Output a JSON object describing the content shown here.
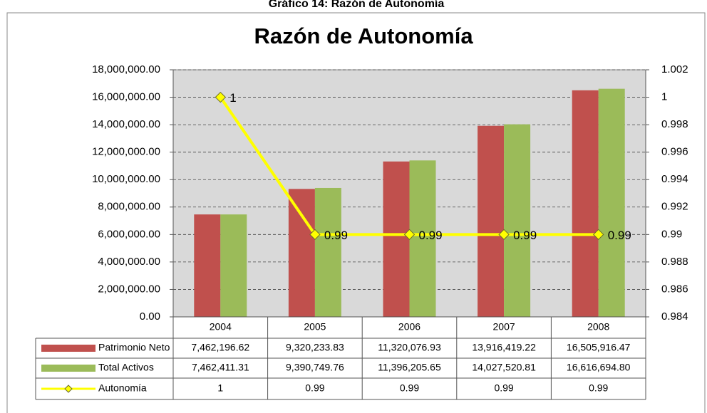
{
  "chart_data": {
    "type": "bar",
    "caption": "Gráfico 14: Razón de Autonomía",
    "title": "Razón de Autonomía",
    "categories": [
      "2004",
      "2005",
      "2006",
      "2007",
      "2008"
    ],
    "series": [
      {
        "name": "Patrimonio Neto",
        "color": "#c0504d",
        "values": [
          7462196.62,
          9320233.83,
          11320076.93,
          13916419.22,
          16505916.47
        ],
        "value_labels": [
          "7,462,196.62",
          "9,320,233.83",
          "11,320,076.93",
          "13,916,419.22",
          "16,505,916.47"
        ]
      },
      {
        "name": "Total Activos",
        "color": "#9bbb59",
        "values": [
          7462411.31,
          9390749.76,
          11396205.65,
          14027520.81,
          16616694.8
        ],
        "value_labels": [
          "7,462,411.31",
          "9,390,749.76",
          "11,396,205.65",
          "14,027,520.81",
          "16,616,694.80"
        ]
      },
      {
        "name": "Autonomía",
        "type": "line",
        "axis": "y2",
        "color": "#ffff00",
        "values": [
          1,
          0.99,
          0.99,
          0.99,
          0.99
        ]
      }
    ],
    "ylim": [
      0,
      18000000
    ],
    "yticks": [
      {
        "value": 0,
        "label": "0.00"
      },
      {
        "value": 2000000,
        "label": "2,000,000.00"
      },
      {
        "value": 4000000,
        "label": "4,000,000.00"
      },
      {
        "value": 6000000,
        "label": "6,000,000.00"
      },
      {
        "value": 8000000,
        "label": "8,000,000.00"
      },
      {
        "value": 10000000,
        "label": "10,000,000.00"
      },
      {
        "value": 12000000,
        "label": "12,000,000.00"
      },
      {
        "value": 14000000,
        "label": "14,000,000.00"
      },
      {
        "value": 16000000,
        "label": "16,000,000.00"
      },
      {
        "value": 18000000,
        "label": "18,000,000.00"
      }
    ],
    "y2lim": [
      0.984,
      1.002
    ],
    "y2ticks": [
      0.984,
      0.986,
      0.988,
      0.99,
      0.992,
      0.994,
      0.996,
      0.998,
      1,
      1.002
    ],
    "grid": true,
    "data_table": true
  }
}
